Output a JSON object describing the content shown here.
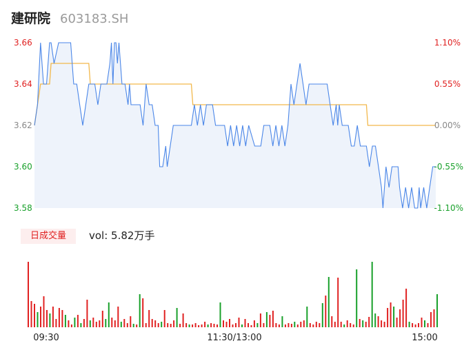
{
  "header": {
    "name": "建研院",
    "code": "603183.SH"
  },
  "volume": {
    "badge": "日成交量",
    "text": "vol: 5.82万手"
  },
  "colors": {
    "price": "#4a86e8",
    "avg": "#f2b84b",
    "up": "#e02020",
    "down": "#18a02a",
    "fill": "#eef3fb"
  },
  "chart_data": {
    "type": "line",
    "x_ticks": [
      "09:30",
      "11:30/13:00",
      "15:00"
    ],
    "y_left_ticks": [
      "3.66",
      "3.64",
      "3.62",
      "3.60",
      "3.58"
    ],
    "y_right_ticks": [
      "1.10%",
      "0.55%",
      "0.00%",
      "-0.55%",
      "-1.10%"
    ],
    "ylim": [
      3.58,
      3.66
    ],
    "prev_close": 3.62,
    "minutes": 240,
    "series": [
      {
        "key": "price",
        "points": [
          [
            0,
            3.62
          ],
          [
            2,
            3.63
          ],
          [
            4,
            3.66
          ],
          [
            6,
            3.64
          ],
          [
            8,
            3.64
          ],
          [
            10,
            3.66
          ],
          [
            11,
            3.66
          ],
          [
            13,
            3.65
          ],
          [
            16,
            3.66
          ],
          [
            20,
            3.66
          ],
          [
            24,
            3.66
          ],
          [
            26,
            3.64
          ],
          [
            28,
            3.64
          ],
          [
            30,
            3.63
          ],
          [
            32,
            3.62
          ],
          [
            34,
            3.63
          ],
          [
            36,
            3.64
          ],
          [
            38,
            3.64
          ],
          [
            40,
            3.64
          ],
          [
            42,
            3.63
          ],
          [
            44,
            3.64
          ],
          [
            46,
            3.64
          ],
          [
            48,
            3.64
          ],
          [
            50,
            3.65
          ],
          [
            51,
            3.66
          ],
          [
            52,
            3.64
          ],
          [
            53,
            3.66
          ],
          [
            54,
            3.66
          ],
          [
            55,
            3.65
          ],
          [
            56,
            3.66
          ],
          [
            57,
            3.65
          ],
          [
            58,
            3.64
          ],
          [
            60,
            3.64
          ],
          [
            62,
            3.63
          ],
          [
            63,
            3.64
          ],
          [
            64,
            3.63
          ],
          [
            66,
            3.63
          ],
          [
            68,
            3.63
          ],
          [
            70,
            3.63
          ],
          [
            72,
            3.62
          ],
          [
            74,
            3.64
          ],
          [
            76,
            3.63
          ],
          [
            78,
            3.63
          ],
          [
            80,
            3.62
          ],
          [
            82,
            3.62
          ],
          [
            83,
            3.6
          ],
          [
            85,
            3.6
          ],
          [
            87,
            3.61
          ],
          [
            88,
            3.6
          ],
          [
            90,
            3.61
          ],
          [
            92,
            3.62
          ],
          [
            96,
            3.62
          ],
          [
            100,
            3.62
          ],
          [
            104,
            3.62
          ],
          [
            106,
            3.63
          ],
          [
            108,
            3.62
          ],
          [
            110,
            3.63
          ],
          [
            112,
            3.62
          ],
          [
            114,
            3.63
          ],
          [
            118,
            3.63
          ],
          [
            120,
            3.62
          ],
          [
            122,
            3.62
          ],
          [
            124,
            3.62
          ],
          [
            126,
            3.62
          ],
          [
            128,
            3.61
          ],
          [
            130,
            3.62
          ],
          [
            132,
            3.61
          ],
          [
            134,
            3.62
          ],
          [
            136,
            3.61
          ],
          [
            138,
            3.62
          ],
          [
            140,
            3.61
          ],
          [
            142,
            3.62
          ],
          [
            146,
            3.61
          ],
          [
            148,
            3.61
          ],
          [
            150,
            3.61
          ],
          [
            152,
            3.62
          ],
          [
            154,
            3.62
          ],
          [
            156,
            3.62
          ],
          [
            158,
            3.61
          ],
          [
            160,
            3.62
          ],
          [
            162,
            3.61
          ],
          [
            164,
            3.62
          ],
          [
            166,
            3.61
          ],
          [
            168,
            3.62
          ],
          [
            170,
            3.64
          ],
          [
            172,
            3.63
          ],
          [
            174,
            3.64
          ],
          [
            176,
            3.65
          ],
          [
            178,
            3.64
          ],
          [
            180,
            3.63
          ],
          [
            182,
            3.64
          ],
          [
            186,
            3.64
          ],
          [
            190,
            3.64
          ],
          [
            194,
            3.64
          ],
          [
            196,
            3.63
          ],
          [
            198,
            3.62
          ],
          [
            200,
            3.63
          ],
          [
            201,
            3.62
          ],
          [
            202,
            3.63
          ],
          [
            204,
            3.62
          ],
          [
            206,
            3.62
          ],
          [
            208,
            3.62
          ],
          [
            210,
            3.61
          ],
          [
            212,
            3.61
          ],
          [
            214,
            3.62
          ],
          [
            216,
            3.61
          ],
          [
            218,
            3.61
          ],
          [
            220,
            3.61
          ],
          [
            222,
            3.6
          ],
          [
            224,
            3.61
          ],
          [
            226,
            3.61
          ],
          [
            228,
            3.6
          ],
          [
            230,
            3.59
          ],
          [
            231,
            3.58
          ],
          [
            233,
            3.6
          ],
          [
            235,
            3.59
          ],
          [
            237,
            3.6
          ],
          [
            239,
            3.6
          ],
          [
            240,
            3.6
          ],
          [
            241,
            3.6
          ],
          [
            242,
            3.59
          ],
          [
            244,
            3.58
          ],
          [
            246,
            3.59
          ],
          [
            248,
            3.58
          ],
          [
            250,
            3.59
          ],
          [
            252,
            3.58
          ],
          [
            254,
            3.58
          ],
          [
            255,
            3.59
          ],
          [
            256,
            3.58
          ],
          [
            258,
            3.59
          ],
          [
            260,
            3.58
          ],
          [
            262,
            3.59
          ],
          [
            264,
            3.6
          ],
          [
            266,
            3.6
          ]
        ]
      },
      {
        "key": "avg",
        "points": [
          [
            0,
            3.62
          ],
          [
            2,
            3.63
          ],
          [
            4,
            3.64
          ],
          [
            10,
            3.64
          ],
          [
            11,
            3.65
          ],
          [
            24,
            3.65
          ],
          [
            36,
            3.65
          ],
          [
            37,
            3.64
          ],
          [
            104,
            3.64
          ],
          [
            105,
            3.63
          ],
          [
            220,
            3.63
          ],
          [
            221,
            3.62
          ],
          [
            266,
            3.62
          ]
        ]
      }
    ],
    "volume": [
      {
        "v": 95,
        "c": "up"
      },
      {
        "v": 38,
        "c": "up"
      },
      {
        "v": 34,
        "c": "up"
      },
      {
        "v": 22,
        "c": "down"
      },
      {
        "v": 30,
        "c": "up"
      },
      {
        "v": 45,
        "c": "up"
      },
      {
        "v": 25,
        "c": "up"
      },
      {
        "v": 20,
        "c": "down"
      },
      {
        "v": 30,
        "c": "up"
      },
      {
        "v": 12,
        "c": "up"
      },
      {
        "v": 28,
        "c": "up"
      },
      {
        "v": 25,
        "c": "up"
      },
      {
        "v": 18,
        "c": "down"
      },
      {
        "v": 10,
        "c": "up"
      },
      {
        "v": 4,
        "c": "up"
      },
      {
        "v": 14,
        "c": "down"
      },
      {
        "v": 18,
        "c": "up"
      },
      {
        "v": 6,
        "c": "down"
      },
      {
        "v": 12,
        "c": "up"
      },
      {
        "v": 40,
        "c": "up"
      },
      {
        "v": 10,
        "c": "down"
      },
      {
        "v": 14,
        "c": "up"
      },
      {
        "v": 8,
        "c": "up"
      },
      {
        "v": 10,
        "c": "up"
      },
      {
        "v": 24,
        "c": "up"
      },
      {
        "v": 12,
        "c": "down"
      },
      {
        "v": 36,
        "c": "down"
      },
      {
        "v": 14,
        "c": "up"
      },
      {
        "v": 10,
        "c": "up"
      },
      {
        "v": 30,
        "c": "up"
      },
      {
        "v": 8,
        "c": "down"
      },
      {
        "v": 12,
        "c": "up"
      },
      {
        "v": 6,
        "c": "up"
      },
      {
        "v": 16,
        "c": "up"
      },
      {
        "v": 5,
        "c": "down"
      },
      {
        "v": 4,
        "c": "up"
      },
      {
        "v": 48,
        "c": "down"
      },
      {
        "v": 42,
        "c": "up"
      },
      {
        "v": 6,
        "c": "up"
      },
      {
        "v": 25,
        "c": "up"
      },
      {
        "v": 12,
        "c": "up"
      },
      {
        "v": 10,
        "c": "up"
      },
      {
        "v": 6,
        "c": "up"
      },
      {
        "v": 8,
        "c": "down"
      },
      {
        "v": 25,
        "c": "up"
      },
      {
        "v": 6,
        "c": "up"
      },
      {
        "v": 5,
        "c": "up"
      },
      {
        "v": 10,
        "c": "up"
      },
      {
        "v": 28,
        "c": "down"
      },
      {
        "v": 5,
        "c": "up"
      },
      {
        "v": 20,
        "c": "up"
      },
      {
        "v": 6,
        "c": "up"
      },
      {
        "v": 4,
        "c": "down"
      },
      {
        "v": 4,
        "c": "up"
      },
      {
        "v": 6,
        "c": "up"
      },
      {
        "v": 3,
        "c": "up"
      },
      {
        "v": 4,
        "c": "up"
      },
      {
        "v": 8,
        "c": "up"
      },
      {
        "v": 4,
        "c": "down"
      },
      {
        "v": 6,
        "c": "up"
      },
      {
        "v": 5,
        "c": "up"
      },
      {
        "v": 4,
        "c": "up"
      },
      {
        "v": 36,
        "c": "down"
      },
      {
        "v": 10,
        "c": "up"
      },
      {
        "v": 8,
        "c": "up"
      },
      {
        "v": 12,
        "c": "up"
      },
      {
        "v": 4,
        "c": "up"
      },
      {
        "v": 6,
        "c": "up"
      },
      {
        "v": 14,
        "c": "up"
      },
      {
        "v": 4,
        "c": "down"
      },
      {
        "v": 12,
        "c": "up"
      },
      {
        "v": 6,
        "c": "up"
      },
      {
        "v": 3,
        "c": "up"
      },
      {
        "v": 10,
        "c": "up"
      },
      {
        "v": 6,
        "c": "down"
      },
      {
        "v": 20,
        "c": "up"
      },
      {
        "v": 6,
        "c": "up"
      },
      {
        "v": 22,
        "c": "down"
      },
      {
        "v": 18,
        "c": "up"
      },
      {
        "v": 24,
        "c": "up"
      },
      {
        "v": 6,
        "c": "up"
      },
      {
        "v": 4,
        "c": "up"
      },
      {
        "v": 16,
        "c": "down"
      },
      {
        "v": 4,
        "c": "up"
      },
      {
        "v": 6,
        "c": "up"
      },
      {
        "v": 5,
        "c": "up"
      },
      {
        "v": 8,
        "c": "down"
      },
      {
        "v": 4,
        "c": "up"
      },
      {
        "v": 8,
        "c": "up"
      },
      {
        "v": 10,
        "c": "up"
      },
      {
        "v": 30,
        "c": "down"
      },
      {
        "v": 6,
        "c": "up"
      },
      {
        "v": 4,
        "c": "up"
      },
      {
        "v": 8,
        "c": "up"
      },
      {
        "v": 6,
        "c": "up"
      },
      {
        "v": 35,
        "c": "down"
      },
      {
        "v": 46,
        "c": "up"
      },
      {
        "v": 73,
        "c": "down"
      },
      {
        "v": 16,
        "c": "up"
      },
      {
        "v": 8,
        "c": "up"
      },
      {
        "v": 72,
        "c": "up"
      },
      {
        "v": 8,
        "c": "up"
      },
      {
        "v": 4,
        "c": "down"
      },
      {
        "v": 10,
        "c": "up"
      },
      {
        "v": 6,
        "c": "up"
      },
      {
        "v": 4,
        "c": "up"
      },
      {
        "v": 84,
        "c": "down"
      },
      {
        "v": 12,
        "c": "up"
      },
      {
        "v": 10,
        "c": "down"
      },
      {
        "v": 8,
        "c": "up"
      },
      {
        "v": 15,
        "c": "up"
      },
      {
        "v": 95,
        "c": "down"
      },
      {
        "v": 20,
        "c": "down"
      },
      {
        "v": 16,
        "c": "up"
      },
      {
        "v": 10,
        "c": "up"
      },
      {
        "v": 8,
        "c": "up"
      },
      {
        "v": 28,
        "c": "up"
      },
      {
        "v": 36,
        "c": "up"
      },
      {
        "v": 30,
        "c": "down"
      },
      {
        "v": 14,
        "c": "up"
      },
      {
        "v": 26,
        "c": "up"
      },
      {
        "v": 40,
        "c": "up"
      },
      {
        "v": 56,
        "c": "up"
      },
      {
        "v": 8,
        "c": "down"
      },
      {
        "v": 6,
        "c": "up"
      },
      {
        "v": 4,
        "c": "up"
      },
      {
        "v": 6,
        "c": "up"
      },
      {
        "v": 14,
        "c": "up"
      },
      {
        "v": 10,
        "c": "down"
      },
      {
        "v": 6,
        "c": "up"
      },
      {
        "v": 22,
        "c": "up"
      },
      {
        "v": 26,
        "c": "up"
      },
      {
        "v": 48,
        "c": "down"
      }
    ]
  }
}
